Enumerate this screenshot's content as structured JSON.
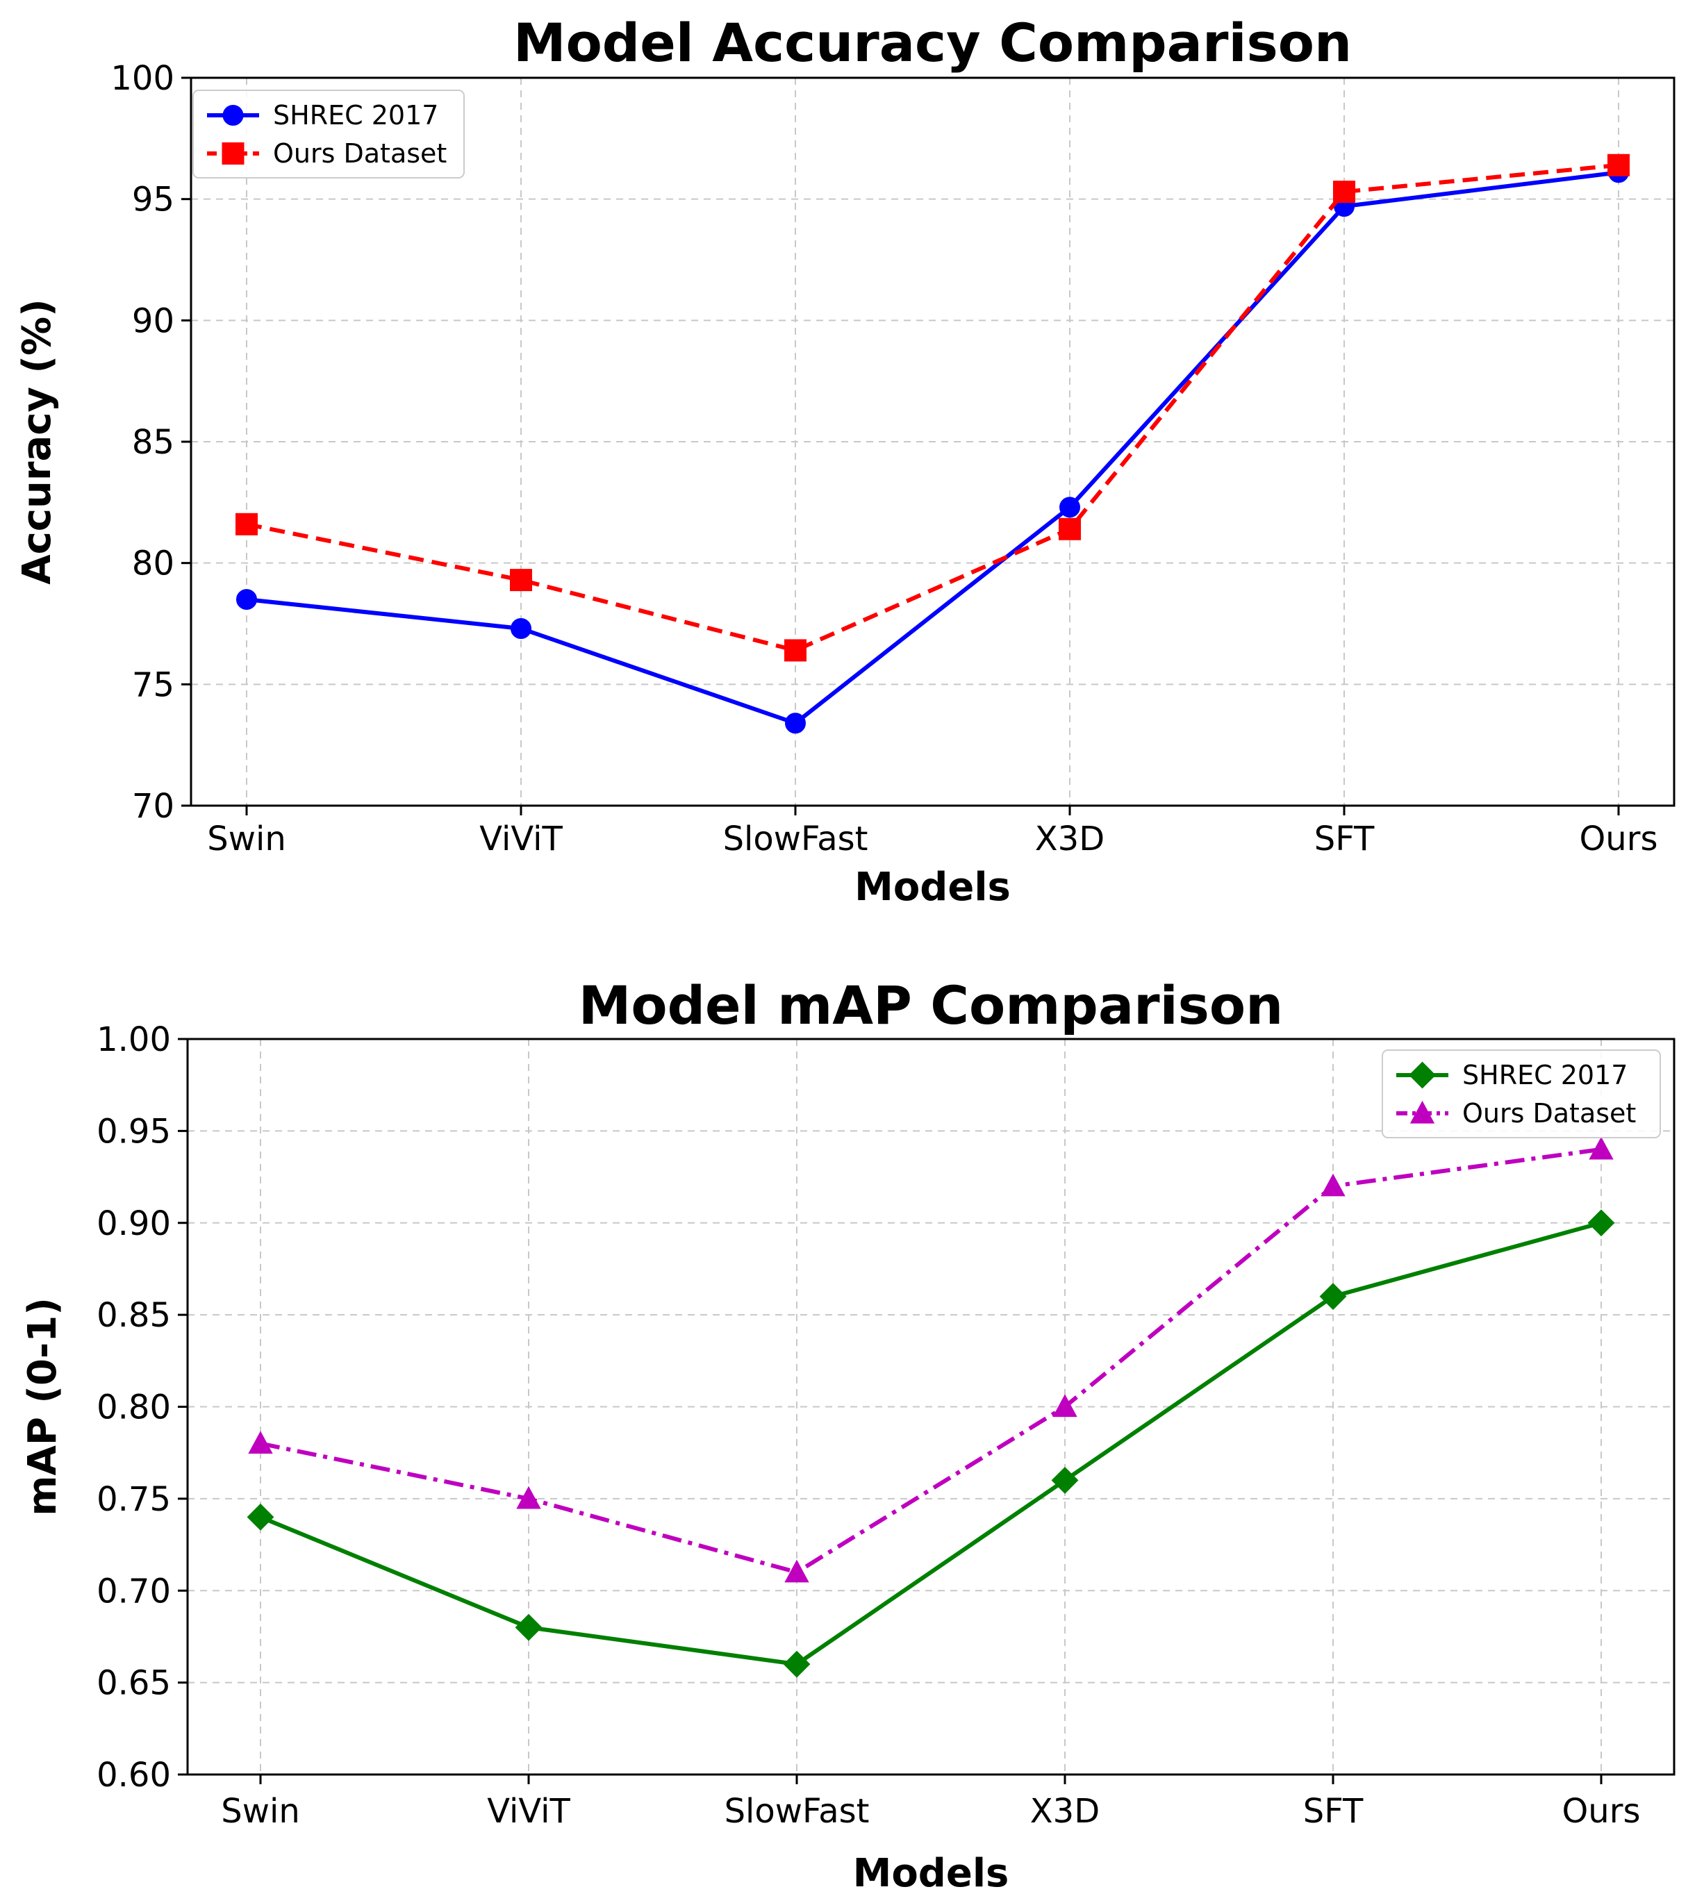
{
  "chart_data": [
    {
      "type": "line",
      "title": "Model Accuracy Comparison",
      "xlabel": "Models",
      "ylabel": "Accuracy (%)",
      "categories": [
        "Swin",
        "ViViT",
        "SlowFast",
        "X3D",
        "SFT",
        "Ours"
      ],
      "ylim": [
        70,
        100
      ],
      "yticks": [
        70,
        75,
        80,
        85,
        90,
        95,
        100
      ],
      "ytick_labels": [
        "70",
        "75",
        "80",
        "85",
        "90",
        "95",
        "100"
      ],
      "grid": true,
      "legend_position": "top-left",
      "series": [
        {
          "name": "SHREC 2017",
          "values": [
            78.5,
            77.3,
            73.4,
            82.3,
            94.7,
            96.1
          ],
          "color": "#0000ff",
          "marker": "circle",
          "linestyle": "solid"
        },
        {
          "name": "Ours Dataset",
          "values": [
            81.6,
            79.3,
            76.4,
            81.4,
            95.3,
            96.4
          ],
          "color": "#ff0000",
          "marker": "square",
          "linestyle": "dashed"
        }
      ]
    },
    {
      "type": "line",
      "title": "Model mAP Comparison",
      "xlabel": "Models",
      "ylabel": "mAP (0-1)",
      "categories": [
        "Swin",
        "ViViT",
        "SlowFast",
        "X3D",
        "SFT",
        "Ours"
      ],
      "ylim": [
        0.6,
        1.0
      ],
      "yticks": [
        0.6,
        0.65,
        0.7,
        0.75,
        0.8,
        0.85,
        0.9,
        0.95,
        1.0
      ],
      "ytick_labels": [
        "0.60",
        "0.65",
        "0.70",
        "0.75",
        "0.80",
        "0.85",
        "0.90",
        "0.95",
        "1.00"
      ],
      "grid": true,
      "legend_position": "top-right",
      "series": [
        {
          "name": "SHREC 2017",
          "values": [
            0.74,
            0.68,
            0.66,
            0.76,
            0.86,
            0.9
          ],
          "color": "#008000",
          "marker": "diamond",
          "linestyle": "solid"
        },
        {
          "name": "Ours Dataset",
          "values": [
            0.78,
            0.75,
            0.71,
            0.8,
            0.92,
            0.94
          ],
          "color": "#bf00bf",
          "marker": "triangle",
          "linestyle": "dashdot"
        }
      ]
    }
  ]
}
